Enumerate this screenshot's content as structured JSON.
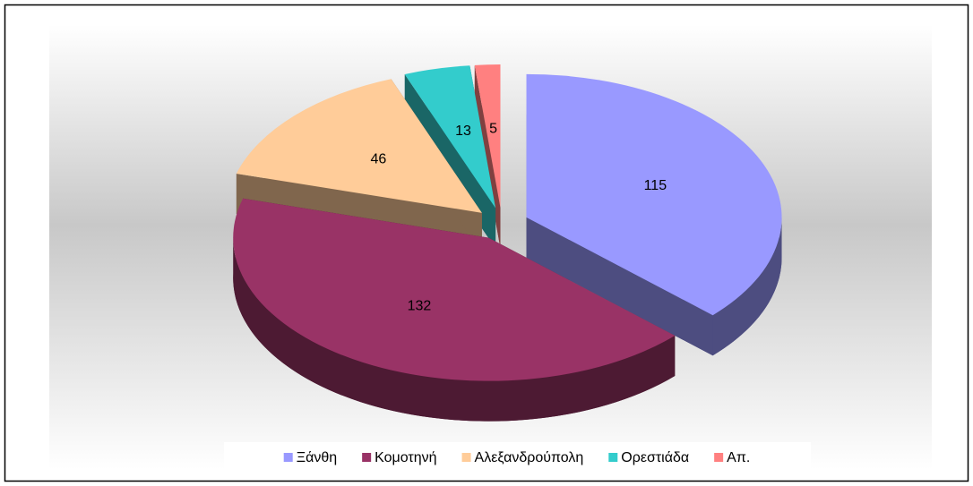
{
  "chart_data": {
    "type": "pie3d",
    "categories": [
      "Ξάνθη",
      "Κομοτηνή",
      "Αλεξανδρούπολη",
      "Ορεστιάδα",
      "Απ."
    ],
    "values": [
      115,
      132,
      46,
      13,
      5
    ],
    "colors": [
      "#9999ff",
      "#993366",
      "#ffcc99",
      "#33cccc",
      "#ff8080"
    ],
    "legend": "bottom"
  }
}
